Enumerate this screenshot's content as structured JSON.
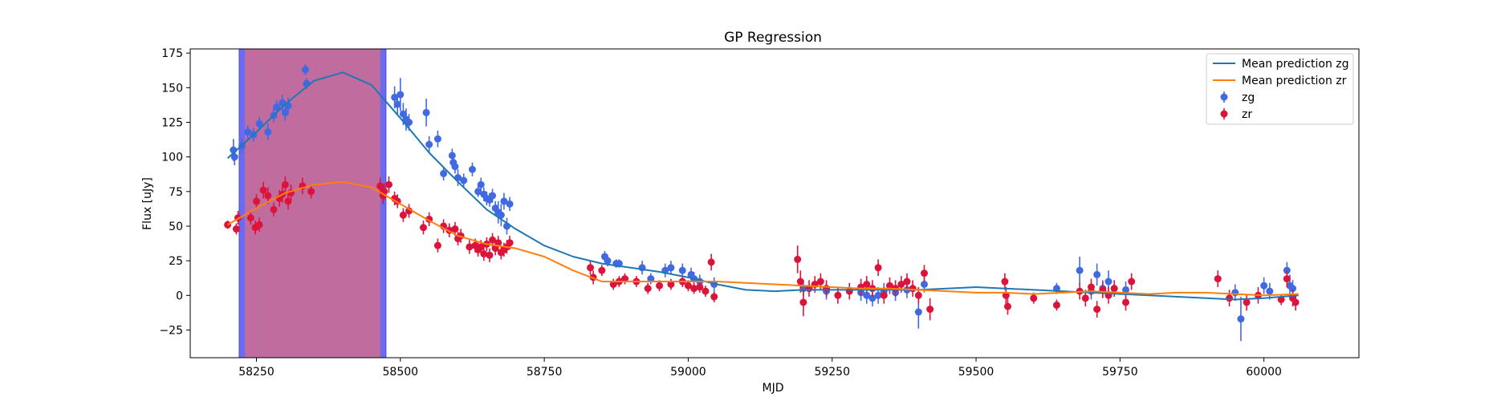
{
  "chart_data": {
    "type": "scatter",
    "title": "GP Regression",
    "xlabel": "MJD",
    "ylabel": "Flux [uJy]",
    "xlim": [
      58135,
      60165
    ],
    "ylim": [
      -45,
      178
    ],
    "xticks": [
      58250,
      58500,
      58750,
      59000,
      59250,
      59500,
      59750,
      60000
    ],
    "yticks": [
      -25,
      0,
      25,
      50,
      75,
      100,
      125,
      150,
      175
    ],
    "legend_position": "top-right",
    "shaded_regions": [
      {
        "x0": 58220,
        "x1": 58475,
        "color": "#6b6bf0"
      },
      {
        "x0": 58230,
        "x1": 58465,
        "color": "#c06c9e"
      }
    ],
    "series": [
      {
        "name": "Mean prediction zg",
        "kind": "line",
        "color": "#1f77b4",
        "x": [
          58200,
          58250,
          58300,
          58350,
          58400,
          58450,
          58500,
          58550,
          58600,
          58650,
          58700,
          58750,
          58800,
          58850,
          58900,
          58950,
          59000,
          59050,
          59100,
          59150,
          59200,
          59250,
          59300,
          59350,
          59400,
          59450,
          59500,
          59550,
          59600,
          59650,
          59700,
          59750,
          59800,
          59850,
          59900,
          59950,
          60000,
          60060
        ],
        "y": [
          99,
          118,
          138,
          155,
          161,
          152,
          128,
          103,
          82,
          62,
          48,
          36,
          28,
          23,
          20,
          17,
          13,
          8,
          4,
          3,
          4,
          4,
          4,
          4,
          4,
          5,
          6,
          5,
          4,
          3,
          2,
          1,
          0,
          -1,
          -2,
          -3,
          -2,
          0
        ]
      },
      {
        "name": "Mean prediction zr",
        "kind": "line",
        "color": "#ff7f0e",
        "x": [
          58200,
          58250,
          58300,
          58350,
          58400,
          58450,
          58500,
          58550,
          58600,
          58650,
          58700,
          58750,
          58800,
          58850,
          58900,
          58950,
          59000,
          59050,
          59100,
          59150,
          59200,
          59250,
          59300,
          59350,
          59400,
          59450,
          59500,
          59550,
          59600,
          59650,
          59700,
          59750,
          59800,
          59850,
          59900,
          59950,
          60000,
          60060
        ],
        "y": [
          51,
          63,
          74,
          80,
          82,
          78,
          66,
          54,
          43,
          37,
          34,
          28,
          18,
          10,
          10,
          10,
          10,
          10,
          9,
          8,
          7,
          6,
          5,
          5,
          4,
          3,
          2,
          2,
          1,
          2,
          3,
          2,
          1,
          2,
          2,
          1,
          0,
          1
        ]
      },
      {
        "name": "zg",
        "kind": "errorbar",
        "color": "#4169e1",
        "x": [
          58210,
          58212,
          58225,
          58235,
          58245,
          58255,
          58270,
          58280,
          58285,
          58295,
          58300,
          58305,
          58335,
          58337,
          58490,
          58495,
          58500,
          58505,
          58510,
          58515,
          58545,
          58550,
          58565,
          58575,
          58590,
          58592,
          58595,
          58600,
          58610,
          58625,
          58635,
          58640,
          58645,
          58650,
          58655,
          58660,
          58665,
          58670,
          58675,
          58680,
          58685,
          58690,
          58855,
          58860,
          58875,
          58880,
          58920,
          58935,
          58960,
          58970,
          58990,
          59005,
          59010,
          59020,
          59045,
          59200,
          59240,
          59300,
          59310,
          59320,
          59330,
          59340,
          59360,
          59380,
          59400,
          59410,
          59640,
          59680,
          59700,
          59710,
          59720,
          59730,
          59760,
          59950,
          59960,
          60000,
          60010,
          60040,
          60045,
          60050
        ],
        "y": [
          105,
          100,
          108,
          118,
          116,
          124,
          118,
          130,
          136,
          139,
          132,
          137,
          163,
          153,
          143,
          138,
          145,
          131,
          127,
          125,
          132,
          109,
          113,
          88,
          101,
          96,
          93,
          85,
          83,
          91,
          75,
          80,
          73,
          70,
          69,
          72,
          63,
          60,
          58,
          68,
          50,
          66,
          28,
          25,
          23,
          23,
          20,
          12,
          18,
          20,
          18,
          15,
          12,
          10,
          8,
          5,
          3,
          2,
          0,
          -2,
          0,
          3,
          2,
          4,
          -12,
          8,
          5,
          18,
          3,
          15,
          5,
          10,
          4,
          2,
          -17,
          7,
          3,
          18,
          7,
          5
        ],
        "yerr": [
          8,
          6,
          5,
          5,
          5,
          5,
          6,
          5,
          5,
          6,
          6,
          6,
          4,
          4,
          8,
          8,
          12,
          8,
          8,
          6,
          10,
          6,
          6,
          5,
          5,
          5,
          5,
          6,
          5,
          5,
          4,
          5,
          5,
          5,
          5,
          5,
          5,
          8,
          8,
          6,
          6,
          5,
          4,
          4,
          3,
          3,
          5,
          4,
          5,
          5,
          5,
          5,
          5,
          5,
          5,
          6,
          6,
          6,
          6,
          6,
          6,
          6,
          6,
          6,
          12,
          6,
          4,
          10,
          6,
          8,
          6,
          8,
          6,
          6,
          16,
          6,
          6,
          6,
          8,
          6
        ]
      },
      {
        "name": "zr",
        "kind": "errorbar",
        "color": "#dc143c",
        "x": [
          58200,
          58215,
          58218,
          58240,
          58248,
          58250,
          58255,
          58262,
          58270,
          58280,
          58290,
          58295,
          58300,
          58305,
          58310,
          58330,
          58345,
          58465,
          58470,
          58472,
          58480,
          58490,
          58495,
          58505,
          58515,
          58540,
          58550,
          58565,
          58575,
          58585,
          58595,
          58600,
          58605,
          58620,
          58630,
          58635,
          58640,
          58645,
          58650,
          58655,
          58660,
          58665,
          58670,
          58675,
          58680,
          58685,
          58690,
          58830,
          58835,
          58850,
          58870,
          58880,
          58890,
          58910,
          58930,
          58950,
          58970,
          58990,
          59000,
          59010,
          59020,
          59030,
          59040,
          59045,
          59190,
          59195,
          59200,
          59210,
          59220,
          59230,
          59240,
          59260,
          59280,
          59300,
          59310,
          59320,
          59330,
          59340,
          59350,
          59360,
          59370,
          59380,
          59390,
          59400,
          59410,
          59420,
          59550,
          59552,
          59555,
          59600,
          59640,
          59680,
          59690,
          59700,
          59710,
          59720,
          59730,
          59740,
          59760,
          59770,
          59920,
          59940,
          59970,
          59990,
          60030,
          60040,
          60050,
          60055
        ],
        "y": [
          51,
          48,
          56,
          56,
          49,
          68,
          51,
          76,
          72,
          62,
          70,
          73,
          80,
          68,
          74,
          79,
          75,
          79,
          72,
          75,
          80,
          70,
          68,
          58,
          61,
          49,
          55,
          36,
          50,
          47,
          48,
          41,
          43,
          35,
          36,
          33,
          35,
          30,
          37,
          29,
          40,
          34,
          38,
          31,
          33,
          35,
          38,
          20,
          13,
          18,
          8,
          10,
          12,
          10,
          5,
          7,
          8,
          10,
          7,
          5,
          6,
          3,
          24,
          -1,
          26,
          10,
          -5,
          5,
          8,
          10,
          5,
          0,
          3,
          6,
          8,
          5,
          20,
          0,
          7,
          5,
          8,
          10,
          5,
          0,
          16,
          -10,
          10,
          0,
          -8,
          -2,
          -7,
          3,
          -2,
          6,
          -10,
          4,
          0,
          5,
          -5,
          10,
          12,
          -2,
          -5,
          0,
          -3,
          12,
          -2,
          -5
        ],
        "yerr": [
          3,
          4,
          5,
          5,
          5,
          5,
          5,
          6,
          6,
          5,
          6,
          6,
          6,
          6,
          6,
          6,
          5,
          6,
          6,
          6,
          6,
          5,
          5,
          5,
          5,
          5,
          5,
          5,
          5,
          5,
          5,
          5,
          5,
          5,
          5,
          5,
          5,
          5,
          5,
          5,
          5,
          5,
          5,
          5,
          5,
          5,
          5,
          5,
          5,
          4,
          4,
          4,
          4,
          4,
          4,
          4,
          4,
          4,
          4,
          4,
          4,
          4,
          6,
          4,
          10,
          8,
          10,
          6,
          6,
          6,
          6,
          6,
          6,
          6,
          6,
          6,
          6,
          6,
          6,
          6,
          6,
          6,
          6,
          6,
          6,
          8,
          6,
          6,
          6,
          4,
          4,
          6,
          6,
          6,
          6,
          6,
          6,
          6,
          6,
          6,
          6,
          6,
          6,
          6,
          4,
          6,
          6,
          6
        ]
      }
    ]
  }
}
